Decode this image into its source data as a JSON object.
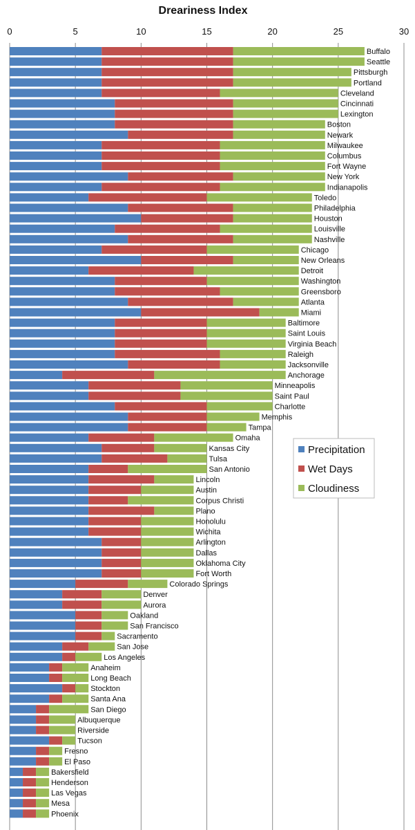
{
  "chart_data": {
    "type": "bar",
    "orientation": "horizontal",
    "stacked": true,
    "title": "Dreariness Index",
    "xlim": [
      0,
      30
    ],
    "x_ticks": [
      "0",
      "5",
      "10",
      "15",
      "20",
      "25",
      "30"
    ],
    "grid": true,
    "legend_position": "right",
    "series_colors": [
      "#4f81bd",
      "#c0504d",
      "#9bbb59"
    ],
    "categories": [
      "Buffalo",
      "Seattle",
      "Pittsburgh",
      "Portland",
      "Cleveland",
      "Cincinnati",
      "Lexington",
      "Boston",
      "Newark",
      "Milwaukee",
      "Columbus",
      "Fort Wayne",
      "New York",
      "Indianapolis",
      "Toledo",
      "Philadelphia",
      "Houston",
      "Louisville",
      "Nashville",
      "Chicago",
      "New Orleans",
      "Detroit",
      "Washington",
      "Greensboro",
      "Atlanta",
      "Miami",
      "Baltimore",
      "Saint Louis",
      "Virginia Beach",
      "Raleigh",
      "Jacksonville",
      "Anchorage",
      "Minneapolis",
      "Saint Paul",
      "Charlotte",
      "Memphis",
      "Tampa",
      "Omaha",
      "Kansas City",
      "Tulsa",
      "San Antonio",
      "Lincoln",
      "Austin",
      "Corpus Christi",
      "Plano",
      "Honolulu",
      "Wichita",
      "Arlington",
      "Dallas",
      "Oklahoma City",
      "Fort Worth",
      "Colorado Springs",
      "Denver",
      "Aurora",
      "Oakland",
      "San Francisco",
      "Sacramento",
      "San Jose",
      "Los Angeles",
      "Anaheim",
      "Long Beach",
      "Stockton",
      "Santa Ana",
      "San Diego",
      "Albuquerque",
      "Riverside",
      "Tucson",
      "Fresno",
      "El Paso",
      "Bakersfield",
      "Henderson",
      "Las Vegas",
      "Mesa",
      "Phoenix"
    ],
    "series": [
      {
        "name": "Precipitation",
        "values": [
          7,
          7,
          7,
          7,
          7,
          8,
          8,
          8,
          9,
          7,
          7,
          7,
          9,
          7,
          6,
          9,
          10,
          8,
          9,
          7,
          10,
          6,
          8,
          8,
          9,
          10,
          8,
          8,
          8,
          8,
          9,
          4,
          6,
          6,
          8,
          9,
          9,
          6,
          7,
          7,
          6,
          6,
          6,
          6,
          6,
          6,
          6,
          7,
          7,
          7,
          7,
          5,
          4,
          4,
          5,
          5,
          5,
          4,
          4,
          3,
          3,
          4,
          3,
          2,
          2,
          2,
          3,
          2,
          2,
          1,
          1,
          1,
          1,
          1
        ]
      },
      {
        "name": "Wet Days",
        "values": [
          10,
          10,
          10,
          10,
          9,
          9,
          9,
          9,
          8,
          9,
          9,
          9,
          8,
          9,
          9,
          8,
          7,
          8,
          8,
          8,
          7,
          8,
          7,
          8,
          8,
          9,
          7,
          7,
          7,
          8,
          7,
          7,
          7,
          7,
          7,
          6,
          6,
          5,
          4,
          5,
          3,
          5,
          4,
          3,
          5,
          4,
          4,
          3,
          3,
          3,
          3,
          4,
          3,
          3,
          2,
          2,
          2,
          2,
          1,
          1,
          1,
          1,
          1,
          1,
          1,
          1,
          1,
          1,
          1,
          1,
          1,
          1,
          1,
          1
        ]
      },
      {
        "name": "Cloudiness",
        "values": [
          10,
          10,
          9,
          9,
          9,
          8,
          8,
          7,
          7,
          8,
          8,
          8,
          7,
          8,
          8,
          6,
          6,
          7,
          6,
          7,
          5,
          8,
          7,
          6,
          5,
          3,
          6,
          6,
          6,
          5,
          5,
          10,
          7,
          7,
          5,
          4,
          3,
          6,
          4,
          3,
          6,
          3,
          4,
          5,
          3,
          4,
          4,
          4,
          4,
          4,
          4,
          3,
          3,
          3,
          2,
          2,
          1,
          2,
          2,
          2,
          2,
          1,
          2,
          3,
          2,
          2,
          1,
          1,
          1,
          1,
          1,
          1,
          1,
          1
        ]
      }
    ]
  }
}
